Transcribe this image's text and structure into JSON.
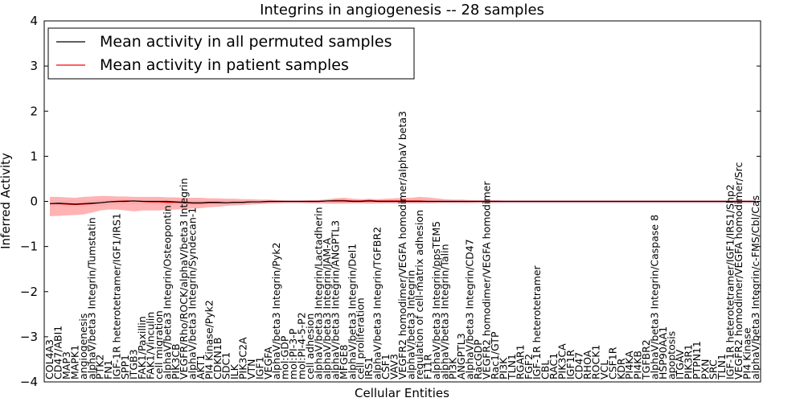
{
  "chart_data": {
    "type": "line",
    "title": "Integrins in angiogenesis -- 28 samples",
    "xlabel": "Cellular Entities",
    "ylabel": "Inferred Activity",
    "ylim": [
      -4,
      4
    ],
    "yticks": [
      -4,
      -3,
      -2,
      -1,
      0,
      1,
      2,
      3,
      4
    ],
    "legend_position": "upper-left",
    "colors": {
      "permuted": "#000000",
      "patient": "#ff0000",
      "patient_band": "#ff9a9a",
      "permuted_band": "#c9cde6"
    },
    "categories": [
      "COL4A3",
      "CD47/ABI1",
      "MAP3",
      "MAPK1",
      "angiogenesis",
      "alphaV/beta3 Integrin/Tumstatin",
      "PTK2",
      "FN1",
      "IGF-1R heterotetramer/IGF1/IRS1",
      "SPP1",
      "ITGB3",
      "FAK1/Paxillin",
      "FAK1/Vinculin",
      "cell migration",
      "alphaV/beta3 Integrin/Osteopontin",
      "PIK3CB",
      "VEGFR/Rho/ROCK/alphaV/beta3 Integrin",
      "alphaV/beta3 Integrin/Syndecan-1",
      "AKT1",
      "PI4 Kinase/Pyk2",
      "CDKN1B",
      "SDC1",
      "ILK",
      "PIK3C2A",
      "VTN",
      "IGF1",
      "VEGFA",
      "alphaV/beta3 Integrin/Pyk2",
      "mol:GDP",
      "mol:PI-3-P",
      "mol:PI-4-5-P2",
      "cell adhesion",
      "alphaV/beta3 Integrin/Lactadherin",
      "alphaV/beta3 Integrin/JAM-A",
      "alphaV/beta3 Integrin/ANGPTL3",
      "MFGE8",
      "alphaV/beta3 Integrin/Del1",
      "cell proliferation",
      "IRS1",
      "alphaV/beta3 Integrin/TGFBR2",
      "CSF1",
      "VAV3",
      "VEGFR2 homodimer/VEGFA homodimer/alphaV beta3",
      "alphaV/beta3 Integrin",
      "regulation of cell-matrix adhesion",
      "F11R",
      "alphaV/beta3 Integrin/ppsTEM5",
      "alphaV/beta3 Integrin/Talin",
      "PI3K",
      "ANGPTL3",
      "alphaV/beta3 Integrin/CD47",
      "RacGDP",
      "VEGFR2 homodimer/VEGFA homodimer",
      "Rac1/GTP",
      "PI3K",
      "TLN1",
      "RGAR1",
      "FGF2",
      "IGF-1R heterotetramer",
      "CBL",
      "RAC1",
      "PIK3CA",
      "IGF1R",
      "CD47",
      "RHOA",
      "ROCK1",
      "VCL",
      "CSF1R",
      "KDR",
      "PI4KA",
      "PI4KB",
      "TGFBR2",
      "alphaV/beta3 Integrin/Caspase 8",
      "HSP90AA1",
      "apoptosis",
      "ITGAV",
      "PIK3R1",
      "PTPN11",
      "PXN",
      "SRC",
      "TLN1",
      "IGF-1R heterotetramer/IGF1/IRS1/Shp2",
      "VEGFR2 homodimer/VEGFA homodimer/Src",
      "PI4 Kinase",
      "alphaV/beta3 Integrin/c-FMS/Cbl/Cas"
    ],
    "series": [
      {
        "name": "Mean activity in all permuted samples",
        "color": "#000000",
        "values": [
          -0.05,
          -0.04,
          -0.05,
          -0.06,
          -0.05,
          -0.04,
          -0.03,
          -0.01,
          0.0,
          0.0,
          0.01,
          0.0,
          0.0,
          0.0,
          0.0,
          -0.01,
          -0.02,
          -0.03,
          -0.03,
          -0.02,
          -0.02,
          -0.03,
          -0.02,
          -0.02,
          -0.01,
          -0.01,
          0.0,
          0.0,
          0.0,
          0.0,
          0.0,
          0.0,
          0.0,
          0.01,
          0.01,
          0.01,
          0.0,
          0.0,
          0.01,
          0.0,
          0.0,
          0.0,
          0.0,
          0.0,
          0.0,
          0.0,
          0.0,
          0.0,
          0.0,
          0.0,
          0.0,
          0.0,
          0.0,
          0.0,
          0.0,
          0.0,
          0.0,
          0.0,
          0.0,
          0.0,
          0.0,
          0.0,
          0.0,
          0.0,
          0.0,
          0.0,
          0.0,
          0.0,
          0.0,
          0.0,
          0.0,
          0.0,
          0.0,
          0.0,
          0.0,
          0.0,
          0.0,
          0.0,
          0.0,
          0.0,
          0.0,
          0.0,
          0.0,
          0.0,
          0.0
        ],
        "upper": [
          0.03,
          0.02,
          0.02,
          0.02,
          0.02,
          0.02,
          0.03,
          0.03,
          0.04,
          0.03,
          0.03,
          0.03,
          0.03,
          0.02,
          0.02,
          0.02,
          0.02,
          0.02,
          0.02,
          0.02,
          0.02,
          0.02,
          0.02,
          0.02,
          0.02,
          0.02,
          0.02,
          0.02,
          0.02,
          0.02,
          0.02,
          0.02,
          0.02,
          0.02,
          0.02,
          0.02,
          0.02,
          0.02,
          0.02,
          0.02,
          0.02,
          0.02,
          0.02,
          0.02,
          0.02,
          0.02,
          0.02,
          0.02,
          0.02,
          0.02,
          0.02,
          0.02,
          0.02,
          0.02,
          0.02,
          0.02,
          0.02,
          0.02,
          0.02,
          0.02,
          0.02,
          0.02,
          0.02,
          0.02,
          0.02,
          0.02,
          0.02,
          0.02,
          0.02,
          0.02,
          0.02,
          0.02,
          0.02,
          0.02,
          0.02,
          0.02,
          0.02,
          0.02,
          0.02,
          0.02,
          0.02,
          0.02,
          0.02,
          0.02,
          0.02
        ],
        "lower": [
          -0.12,
          -0.11,
          -0.12,
          -0.12,
          -0.11,
          -0.1,
          -0.1,
          -0.08,
          -0.07,
          -0.07,
          -0.07,
          -0.07,
          -0.07,
          -0.07,
          -0.07,
          -0.07,
          -0.07,
          -0.08,
          -0.08,
          -0.07,
          -0.07,
          -0.07,
          -0.07,
          -0.07,
          -0.06,
          -0.06,
          -0.05,
          -0.05,
          -0.05,
          -0.05,
          -0.05,
          -0.05,
          -0.05,
          -0.05,
          -0.05,
          -0.05,
          -0.05,
          -0.05,
          -0.05,
          -0.05,
          -0.05,
          -0.05,
          -0.05,
          -0.05,
          -0.05,
          -0.05,
          -0.05,
          -0.05,
          -0.05,
          -0.05,
          -0.05,
          -0.05,
          -0.05,
          -0.05,
          -0.05,
          -0.05,
          -0.05,
          -0.05,
          -0.05,
          -0.05,
          -0.05,
          -0.05,
          -0.05,
          -0.05,
          -0.05,
          -0.05,
          -0.05,
          -0.05,
          -0.05,
          -0.05,
          -0.05,
          -0.05,
          -0.05,
          -0.05,
          -0.05,
          -0.05,
          -0.05,
          -0.05,
          -0.05,
          -0.05,
          -0.05,
          -0.05,
          -0.05,
          -0.05,
          -0.05
        ]
      },
      {
        "name": "Mean activity in patient samples",
        "color": "#ff0000",
        "values": [
          -0.05,
          -0.05,
          -0.06,
          -0.07,
          -0.06,
          -0.05,
          -0.03,
          -0.01,
          0.0,
          0.01,
          0.01,
          0.0,
          -0.01,
          -0.01,
          -0.02,
          -0.02,
          -0.03,
          -0.04,
          -0.04,
          -0.03,
          -0.03,
          -0.03,
          -0.02,
          -0.02,
          -0.01,
          -0.01,
          0.0,
          0.0,
          0.0,
          0.0,
          0.0,
          0.0,
          0.0,
          0.01,
          0.02,
          0.02,
          0.01,
          0.01,
          0.02,
          0.01,
          0.01,
          0.01,
          0.01,
          0.01,
          0.01,
          0.0,
          0.0,
          0.0,
          0.0,
          0.0,
          0.0,
          0.0,
          0.0,
          0.0,
          0.0,
          0.0,
          0.0,
          0.0,
          0.0,
          0.0,
          0.0,
          0.0,
          0.0,
          0.0,
          0.0,
          0.0,
          0.0,
          0.0,
          0.0,
          0.0,
          0.0,
          0.0,
          0.0,
          0.0,
          0.0,
          0.0,
          0.0,
          0.0,
          0.0,
          0.0,
          0.0,
          0.0,
          0.0,
          0.0,
          0.0
        ],
        "upper": [
          0.1,
          0.1,
          0.09,
          0.08,
          0.1,
          0.11,
          0.12,
          0.12,
          0.11,
          0.11,
          0.1,
          0.1,
          0.1,
          0.1,
          0.09,
          0.09,
          0.08,
          0.08,
          0.08,
          0.07,
          0.07,
          0.06,
          0.06,
          0.05,
          0.05,
          0.04,
          0.04,
          0.03,
          0.02,
          0.02,
          0.02,
          0.03,
          0.03,
          0.05,
          0.07,
          0.08,
          0.06,
          0.05,
          0.06,
          0.05,
          0.06,
          0.07,
          0.08,
          0.08,
          0.1,
          0.09,
          0.07,
          0.05,
          0.04,
          0.04,
          0.03,
          0.03,
          0.03,
          0.03,
          0.02,
          0.02,
          0.02,
          0.02,
          0.02,
          0.02,
          0.02,
          0.02,
          0.02,
          0.02,
          0.02,
          0.02,
          0.02,
          0.02,
          0.02,
          0.02,
          0.02,
          0.02,
          0.02,
          0.02,
          0.02,
          0.02,
          0.02,
          0.02,
          0.02,
          0.02,
          0.02,
          0.02,
          0.02,
          0.02,
          0.02
        ],
        "lower": [
          -0.33,
          -0.32,
          -0.31,
          -0.3,
          -0.29,
          -0.25,
          -0.2,
          -0.18,
          -0.18,
          -0.2,
          -0.22,
          -0.2,
          -0.2,
          -0.2,
          -0.19,
          -0.18,
          -0.17,
          -0.16,
          -0.15,
          -0.13,
          -0.12,
          -0.1,
          -0.09,
          -0.08,
          -0.07,
          -0.06,
          -0.05,
          -0.04,
          -0.03,
          -0.03,
          -0.03,
          -0.04,
          -0.04,
          -0.05,
          -0.05,
          -0.05,
          -0.04,
          -0.04,
          -0.05,
          -0.04,
          -0.04,
          -0.04,
          -0.04,
          -0.04,
          -0.04,
          -0.04,
          -0.03,
          -0.03,
          -0.03,
          -0.03,
          -0.03,
          -0.02,
          -0.02,
          -0.02,
          -0.02,
          -0.02,
          -0.02,
          -0.02,
          -0.02,
          -0.02,
          -0.02,
          -0.02,
          -0.02,
          -0.02,
          -0.02,
          -0.02,
          -0.02,
          -0.02,
          -0.02,
          -0.02,
          -0.02,
          -0.02,
          -0.02,
          -0.02,
          -0.02,
          -0.02,
          -0.02,
          -0.02,
          -0.02,
          -0.02,
          -0.02,
          -0.02,
          -0.02,
          -0.02,
          -0.02
        ]
      }
    ]
  }
}
